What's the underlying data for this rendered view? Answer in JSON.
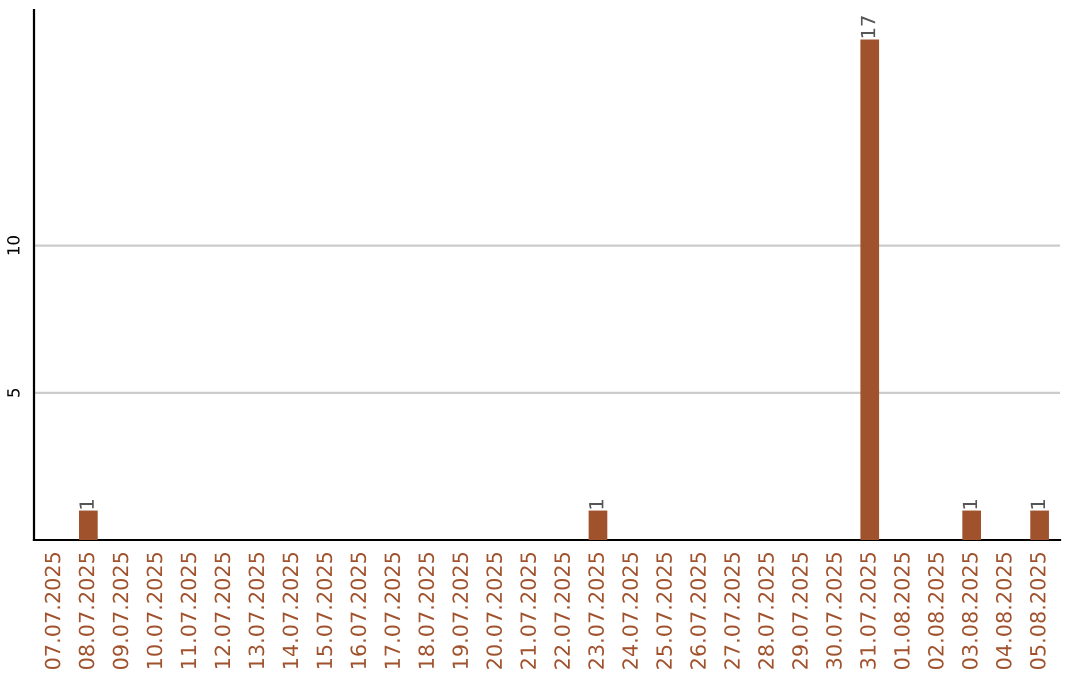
{
  "chart_data": {
    "type": "bar",
    "categories": [
      "07.07.2025",
      "08.07.2025",
      "09.07.2025",
      "10.07.2025",
      "11.07.2025",
      "12.07.2025",
      "13.07.2025",
      "14.07.2025",
      "15.07.2025",
      "16.07.2025",
      "17.07.2025",
      "18.07.2025",
      "19.07.2025",
      "20.07.2025",
      "21.07.2025",
      "22.07.2025",
      "23.07.2025",
      "24.07.2025",
      "25.07.2025",
      "26.07.2025",
      "27.07.2025",
      "28.07.2025",
      "29.07.2025",
      "30.07.2025",
      "31.07.2025",
      "01.08.2025",
      "02.08.2025",
      "03.08.2025",
      "04.08.2025",
      "05.08.2025"
    ],
    "values": [
      0,
      1,
      0,
      0,
      0,
      0,
      0,
      0,
      0,
      0,
      0,
      0,
      0,
      0,
      0,
      0,
      1,
      0,
      0,
      0,
      0,
      0,
      0,
      0,
      17,
      0,
      0,
      1,
      0,
      1
    ],
    "value_labels": [
      null,
      "1",
      null,
      null,
      null,
      null,
      null,
      null,
      null,
      null,
      null,
      null,
      null,
      null,
      null,
      null,
      "1",
      null,
      null,
      null,
      null,
      null,
      null,
      null,
      "17",
      null,
      null,
      "1",
      null,
      "1"
    ],
    "color": "#a0522d",
    "ylim": [
      0,
      18
    ],
    "yticks": [
      5,
      10
    ],
    "grid": "y"
  }
}
